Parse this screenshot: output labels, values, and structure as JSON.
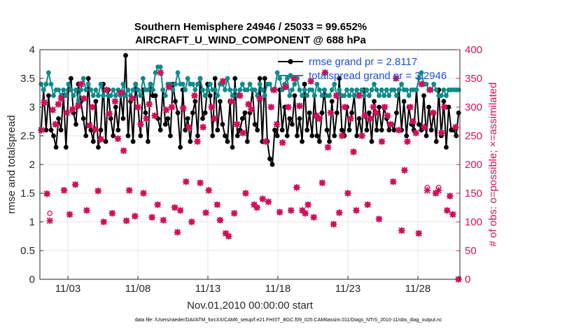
{
  "chart_data": {
    "type": "line",
    "title_line1": "Southern Hemisphere 24946 / 25033 = 99.652%",
    "title_line2": "AIRCRAFT_U_WIND_COMPONENT @ 688 hPa",
    "xlabel": "Nov.01,2010 00:00:00 start",
    "ylabel_left": "rmse and totalspread",
    "ylabel_right": "# of obs: o=possible; ×=assimilated",
    "footnote": "data file: /Users/raeder/DAI/ATM_forcXX/CAM6_setup/f.e21.FHIST_BGC.f09_025.CAM6assim.011/Diags_NTrS_2010-11/obs_diag_output.nc",
    "x_range": [
      1,
      31
    ],
    "x_ticks": [
      {
        "value": 3,
        "label": "11/03"
      },
      {
        "value": 8,
        "label": "11/08"
      },
      {
        "value": 13,
        "label": "11/13"
      },
      {
        "value": 18,
        "label": "11/18"
      },
      {
        "value": 23,
        "label": "11/23"
      },
      {
        "value": 28,
        "label": "11/28"
      }
    ],
    "y_left_range": [
      0,
      4
    ],
    "y_left_ticks": [
      "0",
      "0.5",
      "1",
      "1.5",
      "2",
      "2.5",
      "3",
      "3.5",
      "4"
    ],
    "y_right_range": [
      0,
      400
    ],
    "y_right_ticks": [
      "0",
      "50",
      "100",
      "150",
      "200",
      "250",
      "300",
      "350",
      "400"
    ],
    "grid": true,
    "legend_position": "top-right",
    "series": [
      {
        "name": "rmse grand pr = 2.8117",
        "color": "#000000",
        "axis": "left",
        "values": [
          2.6,
          3.3,
          2.6,
          3.2,
          2.6,
          2.5,
          2.3,
          2.8,
          2.6,
          3.2,
          2.3,
          3.3,
          3.5,
          2.9,
          2.7,
          3.4,
          3.1,
          2.8,
          2.5,
          3.5,
          2.6,
          2.4,
          3.1,
          2.3,
          2.6,
          3.4,
          2.4,
          3.3,
          2.8,
          2.5,
          3.0,
          2.6,
          3.2,
          2.8,
          3.9,
          2.5,
          3.1,
          2.4,
          3.4,
          3.0,
          2.5,
          3.3,
          2.9,
          2.4,
          3.4,
          3.2,
          3.2,
          2.8,
          2.6,
          3.3,
          2.7,
          2.8,
          2.5,
          3.4,
          3.1,
          2.9,
          2.3,
          3.3,
          2.6,
          2.8,
          2.4,
          2.9,
          3.1,
          2.5,
          3.5,
          2.8,
          2.9,
          3.4,
          3.2,
          2.5,
          3.5,
          2.6,
          3.1,
          2.7,
          2.5,
          2.4,
          3.1,
          2.3,
          3.5,
          2.5,
          2.6,
          2.8,
          2.9,
          2.4,
          2.9,
          3.3,
          2.7,
          2.6,
          3.5,
          2.4,
          3.5,
          2.4,
          2.1,
          2.0,
          2.6,
          2.5,
          3.3,
          2.6,
          3.0,
          2.5,
          2.8,
          2.7,
          3.2,
          2.5,
          2.8,
          2.4,
          3.4,
          2.6,
          2.9,
          2.5,
          3.2,
          2.5,
          2.4,
          2.9,
          3.3,
          2.6,
          2.4,
          3.1,
          2.5,
          2.9,
          3.5,
          2.6,
          2.5,
          3.0,
          2.6,
          2.9,
          3.2,
          2.5,
          2.8,
          2.5,
          3.3,
          2.6,
          2.9,
          2.4,
          3.1,
          2.6,
          3.0,
          2.6,
          3.0,
          2.8,
          2.6,
          2.7,
          2.6,
          2.9,
          3.3,
          2.6,
          3.1,
          2.5,
          3.0,
          2.7,
          2.6,
          3.3,
          2.7,
          2.6,
          3.2,
          2.5,
          3.0,
          2.6,
          2.9,
          2.4,
          3.3,
          2.5,
          3.1,
          2.3,
          3.0,
          2.6,
          2.6,
          2.5,
          2.9
        ]
      },
      {
        "name": "totalspread grand pr = 3.2946",
        "color": "#0f8a8a",
        "axis": "left",
        "values": [
          3.4,
          3.3,
          3.4,
          3.6,
          3.4,
          3.2,
          3.3,
          3.3,
          3.2,
          3.3,
          3.2,
          3.4,
          3.3,
          3.2,
          3.3,
          3.1,
          3.3,
          3.5,
          3.3,
          3.4,
          3.3,
          3.2,
          3.3,
          3.2,
          3.4,
          3.2,
          3.3,
          3.2,
          3.2,
          3.3,
          3.2,
          3.3,
          3.2,
          3.4,
          3.2,
          3.3,
          3.2,
          3.3,
          3.4,
          3.3,
          3.2,
          3.5,
          3.3,
          3.3,
          3.4,
          3.3,
          3.6,
          3.7,
          3.7,
          3.3,
          3.2,
          3.4,
          3.4,
          3.3,
          3.4,
          3.6,
          3.4,
          3.4,
          3.3,
          3.5,
          3.4,
          3.4,
          3.3,
          3.4,
          3.5,
          3.3,
          3.2,
          3.3,
          3.4,
          3.3,
          3.3,
          3.2,
          3.4,
          3.4,
          3.3,
          3.5,
          3.3,
          3.2,
          3.3,
          3.2,
          3.3,
          3.4,
          3.3,
          3.3,
          3.4,
          3.3,
          3.3,
          3.2,
          3.4,
          3.3,
          3.2,
          3.4,
          3.4,
          3.3,
          3.3,
          3.6,
          3.5,
          3.3,
          3.4,
          3.5,
          3.2,
          3.3,
          3.4,
          3.5,
          3.3,
          3.2,
          3.3,
          3.2,
          3.3,
          3.3,
          3.2,
          3.4,
          3.3,
          3.2,
          3.3,
          3.2,
          3.2,
          3.3,
          3.4,
          3.2,
          3.3,
          3.2,
          3.2,
          3.3,
          3.2,
          3.3,
          3.2,
          3.3,
          3.2,
          3.3,
          3.2,
          3.3,
          3.2,
          3.3,
          3.4,
          3.3,
          3.2,
          3.3,
          3.2,
          3.3,
          3.2,
          3.3,
          3.3,
          3.2,
          3.3,
          3.4,
          3.3,
          3.3,
          3.2,
          3.3,
          3.3,
          3.3,
          3.5,
          3.6,
          3.4,
          3.4,
          3.3,
          3.3,
          3.4,
          3.3,
          3.2,
          3.2,
          3.3,
          3.2,
          3.3,
          3.3,
          3.3,
          3.3,
          3.3
        ]
      },
      {
        "name": "obs possible",
        "color": "#d0105a",
        "axis": "right",
        "marker": "circle",
        "values": [
          260,
          308,
          149,
          115,
          295,
          270,
          305,
          315,
          155,
          290,
          113,
          296,
          165,
          302,
          340,
          315,
          120,
          268,
          300,
          261,
          154,
          244,
          100,
          330,
          288,
          115,
          310,
          245,
          325,
          224,
          102,
          155,
          315,
          110,
          300,
          270,
          150,
          280,
          305,
          108,
          285,
          130,
          360,
          103,
          295,
          335,
          300,
          125,
          82,
          120,
          298,
          170,
          265,
          100,
          320,
          240,
          168,
          265,
          116,
          155,
          300,
          280,
          130,
          103,
          345,
          80,
          75,
          310,
          115,
          270,
          320,
          255,
          150,
          305,
          296,
          130,
          125,
          315,
          140,
          240,
          135,
          300,
          330,
          270,
          117,
          238,
          335,
          300,
          120,
          350,
          160,
          302,
          120,
          115,
          130,
          345,
          108,
          285,
          280,
          168,
          360,
          230,
          290,
          96,
          320,
          116,
          250,
          300,
          150,
          280,
          222,
          120,
          320,
          250,
          285,
          130,
          280,
          300,
          290,
          105,
          240,
          300,
          285,
          270,
          170,
          350,
          260,
          85,
          190,
          240,
          300,
          275,
          255,
          80,
          340,
          265,
          160,
          330,
          290,
          150,
          160,
          255,
          300,
          120,
          145,
          113,
          265,
          0
        ]
      },
      {
        "name": "obs assimilated",
        "color": "#d0105a",
        "axis": "right",
        "marker": "x",
        "values": [
          260,
          308,
          149,
          102,
          295,
          270,
          305,
          315,
          155,
          290,
          113,
          296,
          165,
          302,
          340,
          315,
          120,
          268,
          300,
          261,
          154,
          244,
          100,
          330,
          288,
          115,
          310,
          245,
          325,
          224,
          102,
          155,
          315,
          110,
          300,
          270,
          150,
          280,
          305,
          108,
          285,
          130,
          360,
          103,
          295,
          335,
          300,
          125,
          82,
          120,
          298,
          170,
          265,
          100,
          320,
          240,
          168,
          265,
          116,
          155,
          300,
          280,
          130,
          103,
          345,
          80,
          75,
          310,
          115,
          270,
          320,
          255,
          150,
          305,
          296,
          130,
          125,
          315,
          140,
          240,
          135,
          300,
          330,
          270,
          117,
          238,
          335,
          300,
          120,
          350,
          160,
          302,
          120,
          115,
          130,
          345,
          108,
          285,
          280,
          168,
          360,
          230,
          290,
          96,
          320,
          116,
          250,
          300,
          150,
          280,
          222,
          120,
          320,
          250,
          285,
          130,
          280,
          300,
          290,
          105,
          240,
          300,
          285,
          270,
          170,
          350,
          260,
          85,
          190,
          240,
          300,
          275,
          255,
          80,
          340,
          265,
          155,
          330,
          290,
          150,
          155,
          255,
          300,
          120,
          145,
          113,
          265,
          0
        ]
      }
    ]
  }
}
